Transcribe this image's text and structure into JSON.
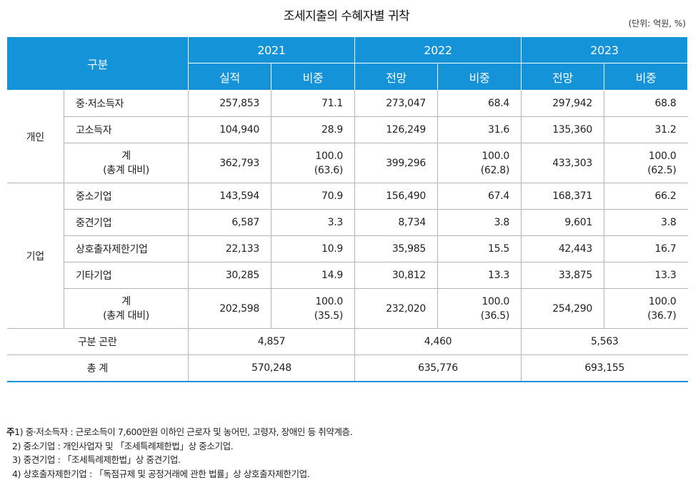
{
  "title": "조세지출의 수혜자별 귀착",
  "unit": "(단위: 억원, %)",
  "header": {
    "category": "구분",
    "years": [
      "2021",
      "2022",
      "2023"
    ],
    "sub": [
      [
        "실적",
        "비중"
      ],
      [
        "전망",
        "비중"
      ],
      [
        "전망",
        "비중"
      ]
    ]
  },
  "individual": {
    "label": "개인",
    "rows": [
      {
        "name": "중·저소득자",
        "v": [
          "257,853",
          "71.1",
          "273,047",
          "68.4",
          "297,942",
          "68.8"
        ]
      },
      {
        "name": "고소득자",
        "v": [
          "104,940",
          "28.9",
          "126,249",
          "31.6",
          "135,360",
          "31.2"
        ]
      }
    ],
    "subtotal": {
      "label1": "계",
      "label2": "(총계 대비)",
      "v": [
        "362,793",
        "100.0",
        "(63.6)",
        "399,296",
        "100.0",
        "(62.8)",
        "433,303",
        "100.0",
        "(62.5)"
      ]
    }
  },
  "company": {
    "label": "기업",
    "rows": [
      {
        "name": "중소기업",
        "v": [
          "143,594",
          "70.9",
          "156,490",
          "67.4",
          "168,371",
          "66.2"
        ]
      },
      {
        "name": "중견기업",
        "v": [
          "6,587",
          "3.3",
          "8,734",
          "3.8",
          "9,601",
          "3.8"
        ]
      },
      {
        "name": "상호출자제한기업",
        "v": [
          "22,133",
          "10.9",
          "35,985",
          "15.5",
          "42,443",
          "16.7"
        ]
      },
      {
        "name": "기타기업",
        "v": [
          "30,285",
          "14.9",
          "30,812",
          "13.3",
          "33,875",
          "13.3"
        ]
      }
    ],
    "subtotal": {
      "label1": "계",
      "label2": "(총계 대비)",
      "v": [
        "202,598",
        "100.0",
        "(35.5)",
        "232,020",
        "100.0",
        "(36.5)",
        "254,290",
        "100.0",
        "(36.7)"
      ]
    }
  },
  "unclassified": {
    "label": "구분 곤란",
    "v": [
      "4,857",
      "4,460",
      "5,563"
    ]
  },
  "total": {
    "label": "총 계",
    "v": [
      "570,248",
      "635,776",
      "693,155"
    ]
  },
  "notes": {
    "prefix": "주",
    "lines": [
      "1) 중·저소득자 : 근로소득이 7,600만원 이하인 근로자 및 농어민, 고령자, 장애인 등 취약계층.",
      "2) 중소기업 : 개인사업자 및 「조세특례제한법」상 중소기업.",
      "3) 중견기업 : 「조세특례제한법」상 중견기업.",
      "4) 상호출자제한기업 : 「독점규제 및 공정거래에 관한 법률」상 상호출자제한기업."
    ]
  }
}
